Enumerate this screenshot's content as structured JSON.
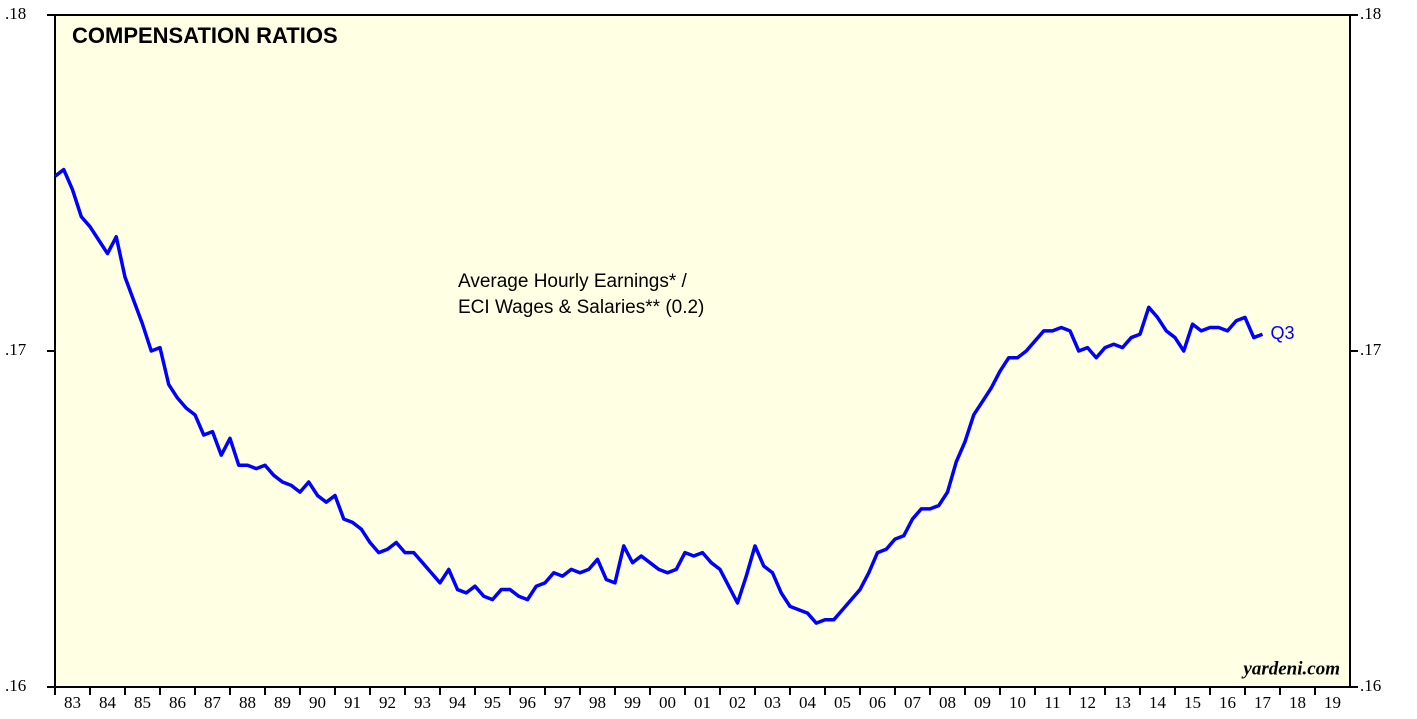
{
  "chart_data": {
    "type": "line",
    "title": "COMPENSATION RATIOS",
    "annotation": [
      "Average Hourly Earnings* /",
      "ECI Wages & Salaries** (0.2)"
    ],
    "end_label": "Q3",
    "source": "yardeni.com",
    "xlim": [
      1983,
      2020
    ],
    "xticks": [
      {
        "value": 1983,
        "label": "83"
      },
      {
        "value": 1984,
        "label": "84"
      },
      {
        "value": 1985,
        "label": "85"
      },
      {
        "value": 1986,
        "label": "86"
      },
      {
        "value": 1987,
        "label": "87"
      },
      {
        "value": 1988,
        "label": "88"
      },
      {
        "value": 1989,
        "label": "89"
      },
      {
        "value": 1990,
        "label": "90"
      },
      {
        "value": 1991,
        "label": "91"
      },
      {
        "value": 1992,
        "label": "92"
      },
      {
        "value": 1993,
        "label": "93"
      },
      {
        "value": 1994,
        "label": "94"
      },
      {
        "value": 1995,
        "label": "95"
      },
      {
        "value": 1996,
        "label": "96"
      },
      {
        "value": 1997,
        "label": "97"
      },
      {
        "value": 1998,
        "label": "98"
      },
      {
        "value": 1999,
        "label": "99"
      },
      {
        "value": 2000,
        "label": "00"
      },
      {
        "value": 2001,
        "label": "01"
      },
      {
        "value": 2002,
        "label": "02"
      },
      {
        "value": 2003,
        "label": "03"
      },
      {
        "value": 2004,
        "label": "04"
      },
      {
        "value": 2005,
        "label": "05"
      },
      {
        "value": 2006,
        "label": "06"
      },
      {
        "value": 2007,
        "label": "07"
      },
      {
        "value": 2008,
        "label": "08"
      },
      {
        "value": 2009,
        "label": "09"
      },
      {
        "value": 2010,
        "label": "10"
      },
      {
        "value": 2011,
        "label": "11"
      },
      {
        "value": 2012,
        "label": "12"
      },
      {
        "value": 2013,
        "label": "13"
      },
      {
        "value": 2014,
        "label": "14"
      },
      {
        "value": 2015,
        "label": "15"
      },
      {
        "value": 2016,
        "label": "16"
      },
      {
        "value": 2017,
        "label": "17"
      },
      {
        "value": 2018,
        "label": "18"
      },
      {
        "value": 2019,
        "label": "19"
      }
    ],
    "ylim": [
      0.16,
      0.18
    ],
    "yticks": [
      {
        "value": 0.16,
        "label": ".16"
      },
      {
        "value": 0.17,
        "label": ".17"
      },
      {
        "value": 0.18,
        "label": ".18"
      }
    ],
    "x": [
      1983,
      1983.25,
      1983.5,
      1983.75,
      1984,
      1984.25,
      1984.5,
      1984.75,
      1985,
      1985.25,
      1985.5,
      1985.75,
      1986,
      1986.25,
      1986.5,
      1986.75,
      1987,
      1987.25,
      1987.5,
      1987.75,
      1988,
      1988.25,
      1988.5,
      1988.75,
      1989,
      1989.25,
      1989.5,
      1989.75,
      1990,
      1990.25,
      1990.5,
      1990.75,
      1991,
      1991.25,
      1991.5,
      1991.75,
      1992,
      1992.25,
      1992.5,
      1992.75,
      1993,
      1993.25,
      1993.5,
      1993.75,
      1994,
      1994.25,
      1994.5,
      1994.75,
      1995,
      1995.25,
      1995.5,
      1995.75,
      1996,
      1996.25,
      1996.5,
      1996.75,
      1997,
      1997.25,
      1997.5,
      1997.75,
      1998,
      1998.25,
      1998.5,
      1998.75,
      1999,
      1999.25,
      1999.5,
      1999.75,
      2000,
      2000.25,
      2000.5,
      2000.75,
      2001,
      2001.25,
      2001.5,
      2001.75,
      2002,
      2002.25,
      2002.5,
      2002.75,
      2003,
      2003.25,
      2003.5,
      2003.75,
      2004,
      2004.25,
      2004.5,
      2004.75,
      2005,
      2005.25,
      2005.5,
      2005.75,
      2006,
      2006.25,
      2006.5,
      2006.75,
      2007,
      2007.25,
      2007.5,
      2007.75,
      2008,
      2008.25,
      2008.5,
      2008.75,
      2009,
      2009.25,
      2009.5,
      2009.75,
      2010,
      2010.25,
      2010.5,
      2010.75,
      2011,
      2011.25,
      2011.5,
      2011.75,
      2012,
      2012.25,
      2012.5,
      2012.75,
      2013,
      2013.25,
      2013.5,
      2013.75,
      2014,
      2014.25,
      2014.5,
      2014.75,
      2015,
      2015.25,
      2015.5,
      2015.75,
      2016,
      2016.25,
      2016.5,
      2016.75,
      2017,
      2017.25,
      2017.5
    ],
    "series": [
      {
        "color": "#0000ff",
        "values": [
          0.1752,
          0.1754,
          0.1748,
          0.174,
          0.1737,
          0.1733,
          0.1729,
          0.1734,
          0.1722,
          0.1715,
          0.1708,
          0.17,
          0.1701,
          0.169,
          0.1686,
          0.1683,
          0.1681,
          0.1675,
          0.1676,
          0.1669,
          0.1674,
          0.1666,
          0.1666,
          0.1665,
          0.1666,
          0.1663,
          0.1661,
          0.166,
          0.1658,
          0.1661,
          0.1657,
          0.1655,
          0.1657,
          0.165,
          0.1649,
          0.1647,
          0.1643,
          0.164,
          0.1641,
          0.1643,
          0.164,
          0.164,
          0.1637,
          0.1634,
          0.1631,
          0.1635,
          0.1629,
          0.1628,
          0.163,
          0.1627,
          0.1626,
          0.1629,
          0.1629,
          0.1627,
          0.1626,
          0.163,
          0.1631,
          0.1634,
          0.1633,
          0.1635,
          0.1634,
          0.1635,
          0.1638,
          0.1632,
          0.1631,
          0.1642,
          0.1637,
          0.1639,
          0.1637,
          0.1635,
          0.1634,
          0.1635,
          0.164,
          0.1639,
          0.164,
          0.1637,
          0.1635,
          0.163,
          0.1625,
          0.1633,
          0.1642,
          0.1636,
          0.1634,
          0.1628,
          0.1624,
          0.1623,
          0.1622,
          0.1619,
          0.162,
          0.162,
          0.1623,
          0.1626,
          0.1629,
          0.1634,
          0.164,
          0.1641,
          0.1644,
          0.1645,
          0.165,
          0.1653,
          0.1653,
          0.1654,
          0.1658,
          0.1667,
          0.1673,
          0.1681,
          0.1685,
          0.1689,
          0.1694,
          0.1698,
          0.1698,
          0.17,
          0.1703,
          0.1706,
          0.1706,
          0.1707,
          0.1706,
          0.17,
          0.1701,
          0.1698,
          0.1701,
          0.1702,
          0.1701,
          0.1704,
          0.1705,
          0.1713,
          0.171,
          0.1706,
          0.1704,
          0.17,
          0.1708,
          0.1706,
          0.1707,
          0.1707,
          0.1706,
          0.1709,
          0.171,
          0.1704,
          0.1705
        ]
      }
    ]
  }
}
